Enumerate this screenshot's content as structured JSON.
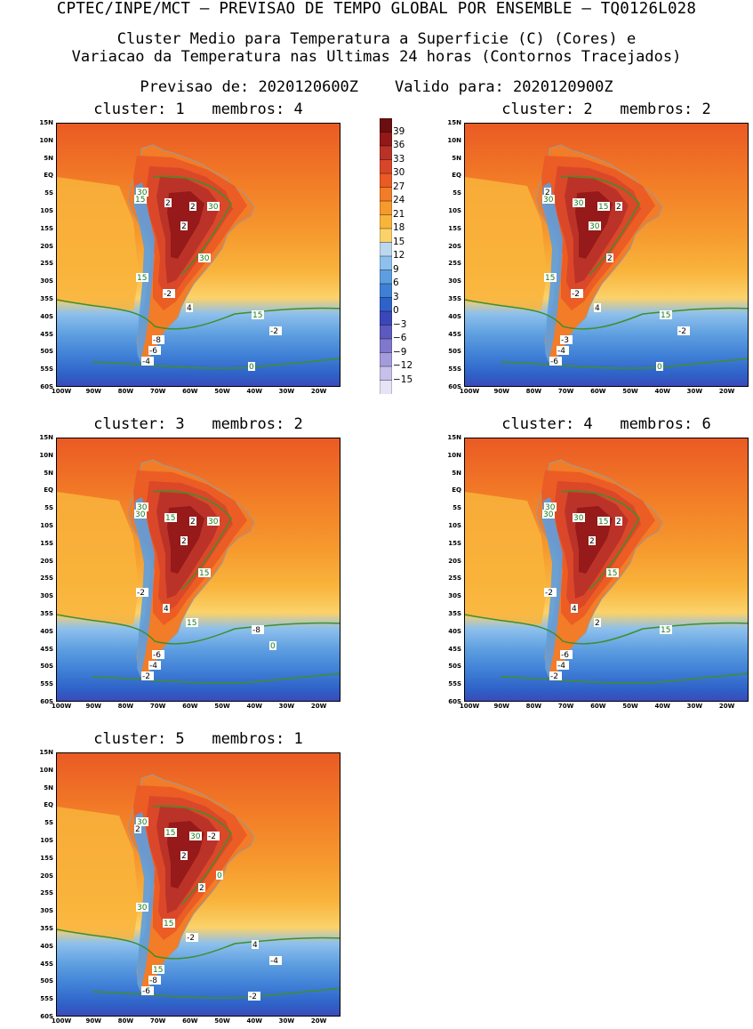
{
  "header": {
    "line1": "CPTEC/INPE/MCT – PREVISAO DE TEMPO GLOBAL POR ENSEMBLE – TQ0126L028",
    "line2": "Cluster Medio para Temperatura a Superficie (C) (Cores) e",
    "line3": "Variacao da Temperatura nas Ultimas 24 horas (Contornos Tracejados)",
    "line4": "Previsao de: 2020120600Z    Valido para: 2020120900Z"
  },
  "axes": {
    "lat_labels": [
      "15N",
      "10N",
      "5N",
      "EQ",
      "5S",
      "10S",
      "15S",
      "20S",
      "25S",
      "30S",
      "35S",
      "40S",
      "45S",
      "50S",
      "55S",
      "60S"
    ],
    "lon_labels": [
      "100W",
      "90W",
      "80W",
      "70W",
      "60W",
      "50W",
      "40W",
      "30W",
      "20W"
    ]
  },
  "colorbar": {
    "labels": [
      "39",
      "36",
      "33",
      "30",
      "27",
      "24",
      "21",
      "18",
      "15",
      "12",
      "9",
      "6",
      "3",
      "0",
      "−3",
      "−6",
      "−9",
      "−12",
      "−15"
    ],
    "colors": [
      "#6a0f0f",
      "#931818",
      "#b83228",
      "#d8462a",
      "#ea5a24",
      "#f27c27",
      "#f69a2e",
      "#f9b43c",
      "#fbd26a",
      "#bcd7f0",
      "#8dc0ec",
      "#5d9ee0",
      "#3f7fd6",
      "#2f62c8",
      "#3b47b8",
      "#5c5abf",
      "#7f78cc",
      "#a39bdb",
      "#c6c0ea",
      "#e6e3f6"
    ]
  },
  "panels": [
    {
      "title": "cluster: 1   membros: 4",
      "labels": [
        "30",
        "2",
        "2",
        "30",
        "2",
        "15",
        "30",
        "15",
        "-2",
        "4",
        "15",
        "-8",
        "-6",
        "-4",
        "-2",
        "0"
      ]
    },
    {
      "title": "cluster: 2   membros: 2",
      "labels": [
        "2",
        "30",
        "15",
        "2",
        "30",
        "30",
        "2",
        "15",
        "-2",
        "4",
        "15",
        "-3",
        "-4",
        "-6",
        "-2",
        "0"
      ]
    },
    {
      "title": "cluster: 3   membros: 2",
      "labels": [
        "30",
        "15",
        "2",
        "30",
        "2",
        "30",
        "15",
        "-2",
        "4",
        "15",
        "-8",
        "-6",
        "-4",
        "-2",
        "0"
      ]
    },
    {
      "title": "cluster: 4   membros: 6",
      "labels": [
        "30",
        "30",
        "15",
        "2",
        "2",
        "30",
        "15",
        "-2",
        "4",
        "2",
        "15",
        "-6",
        "-4",
        "-2"
      ]
    },
    {
      "title": "cluster: 5   membros: 1",
      "labels": [
        "30",
        "15",
        "30",
        "-2",
        "2",
        "2",
        "2",
        "30",
        "15",
        "-2",
        "4",
        "15",
        "-8",
        "-6",
        "-4",
        "-2",
        "0"
      ]
    }
  ]
}
